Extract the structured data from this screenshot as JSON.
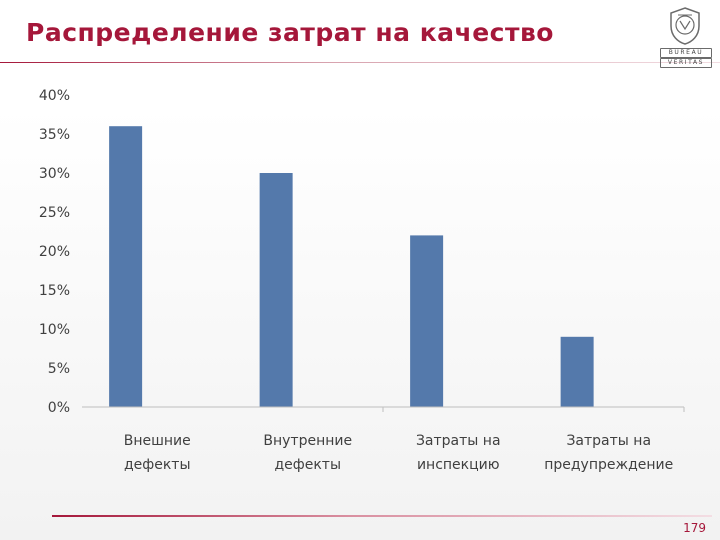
{
  "slide": {
    "title": "Распределение затрат на качество",
    "page_number": "179"
  },
  "logo": {
    "line1": "BUREAU",
    "line2": "VERITAS",
    "color": "#6b6b6b"
  },
  "colors": {
    "title": "#a5173a",
    "bar": "#5479ab",
    "axis": "#bfbfbf"
  },
  "chart_data": {
    "type": "bar",
    "categories": [
      [
        "Внешние",
        "дефекты"
      ],
      [
        "Внутренние",
        "дефекты"
      ],
      [
        "Затраты на",
        "инспекцию"
      ],
      [
        "Затраты на",
        "предупреждение"
      ]
    ],
    "values": [
      36,
      30,
      22,
      9
    ],
    "ylim": [
      0,
      40
    ],
    "yticks": [
      "0%",
      "5%",
      "10%",
      "15%",
      "20%",
      "25%",
      "30%",
      "35%",
      "40%"
    ],
    "grid": false
  }
}
